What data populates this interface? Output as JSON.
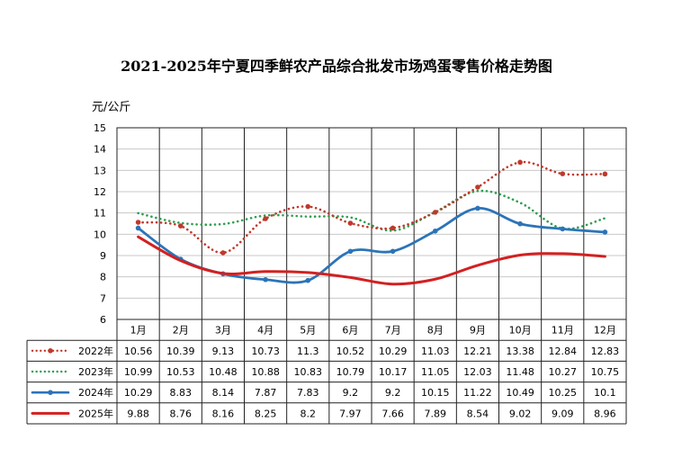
{
  "chart_data": {
    "type": "line",
    "title": "2021-2025年宁夏四季鲜农产品综合批发市场鸡蛋零售价格走势图",
    "ylabel": "元/公斤",
    "ylim": [
      6,
      15
    ],
    "yticks": [
      "6",
      "7",
      "8",
      "9",
      "10",
      "11",
      "12",
      "13",
      "14",
      "15"
    ],
    "categories": [
      "1月",
      "2月",
      "3月",
      "4月",
      "5月",
      "6月",
      "7月",
      "8月",
      "9月",
      "10月",
      "11月",
      "12月"
    ],
    "grid": true,
    "legend": "data-table",
    "series": [
      {
        "name": "2022年",
        "color": "#c0392b",
        "style": "dotted-marker",
        "values": [
          10.56,
          10.39,
          9.13,
          10.73,
          11.3,
          10.52,
          10.29,
          11.03,
          12.21,
          13.38,
          12.84,
          12.83
        ],
        "labels": [
          "10.56",
          "10.39",
          "9.13",
          "10.73",
          "11.3",
          "10.52",
          "10.29",
          "11.03",
          "12.21",
          "13.38",
          "12.84",
          "12.83"
        ]
      },
      {
        "name": "2023年",
        "color": "#2e9e4f",
        "style": "dotted",
        "values": [
          10.99,
          10.53,
          10.48,
          10.88,
          10.83,
          10.79,
          10.17,
          11.05,
          12.03,
          11.48,
          10.27,
          10.75
        ],
        "labels": [
          "10.99",
          "10.53",
          "10.48",
          "10.88",
          "10.83",
          "10.79",
          "10.17",
          "11.05",
          "12.03",
          "11.48",
          "10.27",
          "10.75"
        ]
      },
      {
        "name": "2024年",
        "color": "#2b74b8",
        "style": "solid-marker",
        "values": [
          10.29,
          8.83,
          8.14,
          7.87,
          7.83,
          9.2,
          9.2,
          10.15,
          11.22,
          10.49,
          10.25,
          10.1
        ],
        "labels": [
          "10.29",
          "8.83",
          "8.14",
          "7.87",
          "7.83",
          "9.2",
          "9.2",
          "10.15",
          "11.22",
          "10.49",
          "10.25",
          "10.1"
        ]
      },
      {
        "name": "2025年",
        "color": "#d32020",
        "style": "solid-thick",
        "values": [
          9.88,
          8.76,
          8.16,
          8.25,
          8.2,
          7.97,
          7.66,
          7.89,
          8.54,
          9.02,
          9.09,
          8.96
        ],
        "labels": [
          "9.88",
          "8.76",
          "8.16",
          "8.25",
          "8.2",
          "7.97",
          "7.66",
          "7.89",
          "8.54",
          "9.02",
          "9.09",
          "8.96"
        ]
      }
    ]
  }
}
